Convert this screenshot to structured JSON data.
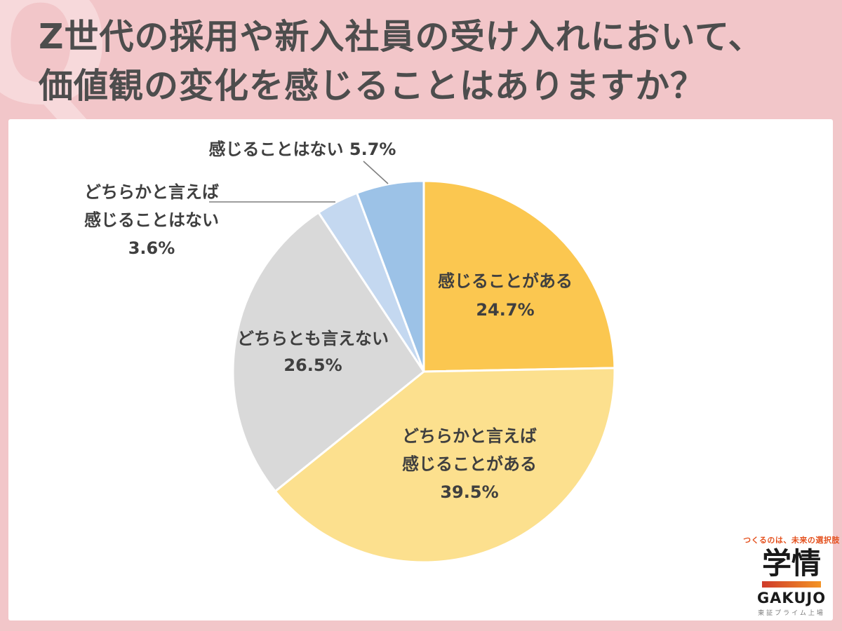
{
  "page": {
    "background_color": "#f2c6c9",
    "watermark_letter": "Q",
    "panel_color": "#ffffff"
  },
  "header": {
    "title_line1": "Z世代の採用や新入社員の受け入れにおいて、",
    "title_line2": "価値観の変化を感じることはありますか？",
    "text_color": "#4d4d4d"
  },
  "chart_data": {
    "type": "pie",
    "title": "",
    "start_angle_deg": 0,
    "direction": "clockwise",
    "units": "%",
    "slices": [
      {
        "label": "感じることがある",
        "value": 24.7,
        "color": "#fbc750",
        "label_position": "inside",
        "label_block": "感じることがある\n24.7%"
      },
      {
        "label": "どちらかと言えば感じることがある",
        "value": 39.5,
        "color": "#fce08e",
        "label_position": "inside",
        "label_block": "どちらかと言えば\n感じることがある\n39.5%"
      },
      {
        "label": "どちらとも言えない",
        "value": 26.5,
        "color": "#d9d9d9",
        "label_position": "inside",
        "label_block": "どちらとも言えない\n26.5%"
      },
      {
        "label": "どちらかと言えば感じることはない",
        "value": 3.6,
        "color": "#c4d8f0",
        "label_position": "outside-left",
        "label_block": "どちらかと言えば\n感じることはない\n3.6%"
      },
      {
        "label": "感じることはない",
        "value": 5.7,
        "color": "#9cc2e7",
        "label_position": "outside-top",
        "label_block": "感じることはない 5.7%"
      }
    ],
    "slice_border_color": "#ffffff",
    "leader_line_color": "#7f7f7f"
  },
  "logo": {
    "tagline": "つくるのは、未来の選択肢",
    "tagline_color": "#e4511e",
    "name_jp": "学情",
    "name_en": "GAKUJO",
    "subtitle": "東証プライム上場",
    "bar_gradient_start": "#cf3b2b",
    "bar_gradient_end": "#f39324"
  }
}
